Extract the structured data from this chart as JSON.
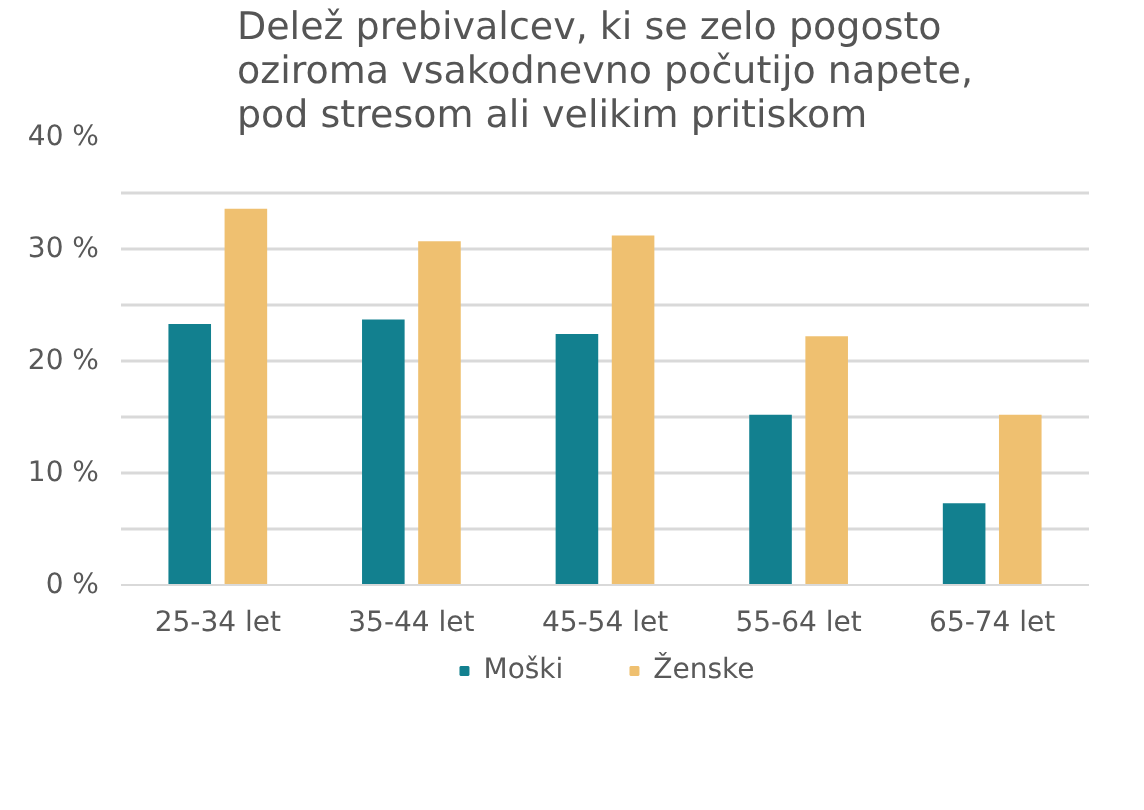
{
  "chart_data": {
    "type": "bar",
    "title": "Delež prebivalcev, ki se zelo pogosto\noziroma vsakodnevno počutijo napete,\npod stresom ali velikim pritiskom",
    "categories": [
      "25-34 let",
      "35-44 let",
      "45-54 let",
      "55-64 let",
      "65-74 let"
    ],
    "series": [
      {
        "name": "Moški",
        "color": "#12808f",
        "values": [
          23.3,
          23.7,
          22.4,
          15.2,
          7.3
        ]
      },
      {
        "name": "Ženske",
        "color": "#efc070",
        "values": [
          33.6,
          30.7,
          31.2,
          22.2,
          15.2
        ]
      }
    ],
    "ylim": [
      0,
      40
    ],
    "yticks": [
      {
        "value": 0,
        "label": "0 %"
      },
      {
        "value": 5,
        "label": null
      },
      {
        "value": 10,
        "label": "10 %"
      },
      {
        "value": 15,
        "label": null
      },
      {
        "value": 20,
        "label": "20 %"
      },
      {
        "value": 25,
        "label": null
      },
      {
        "value": 30,
        "label": "30 %"
      },
      {
        "value": 35,
        "label": null
      },
      {
        "value": 40,
        "label": "40 %"
      }
    ],
    "grid": "y",
    "legend": "bottom"
  }
}
